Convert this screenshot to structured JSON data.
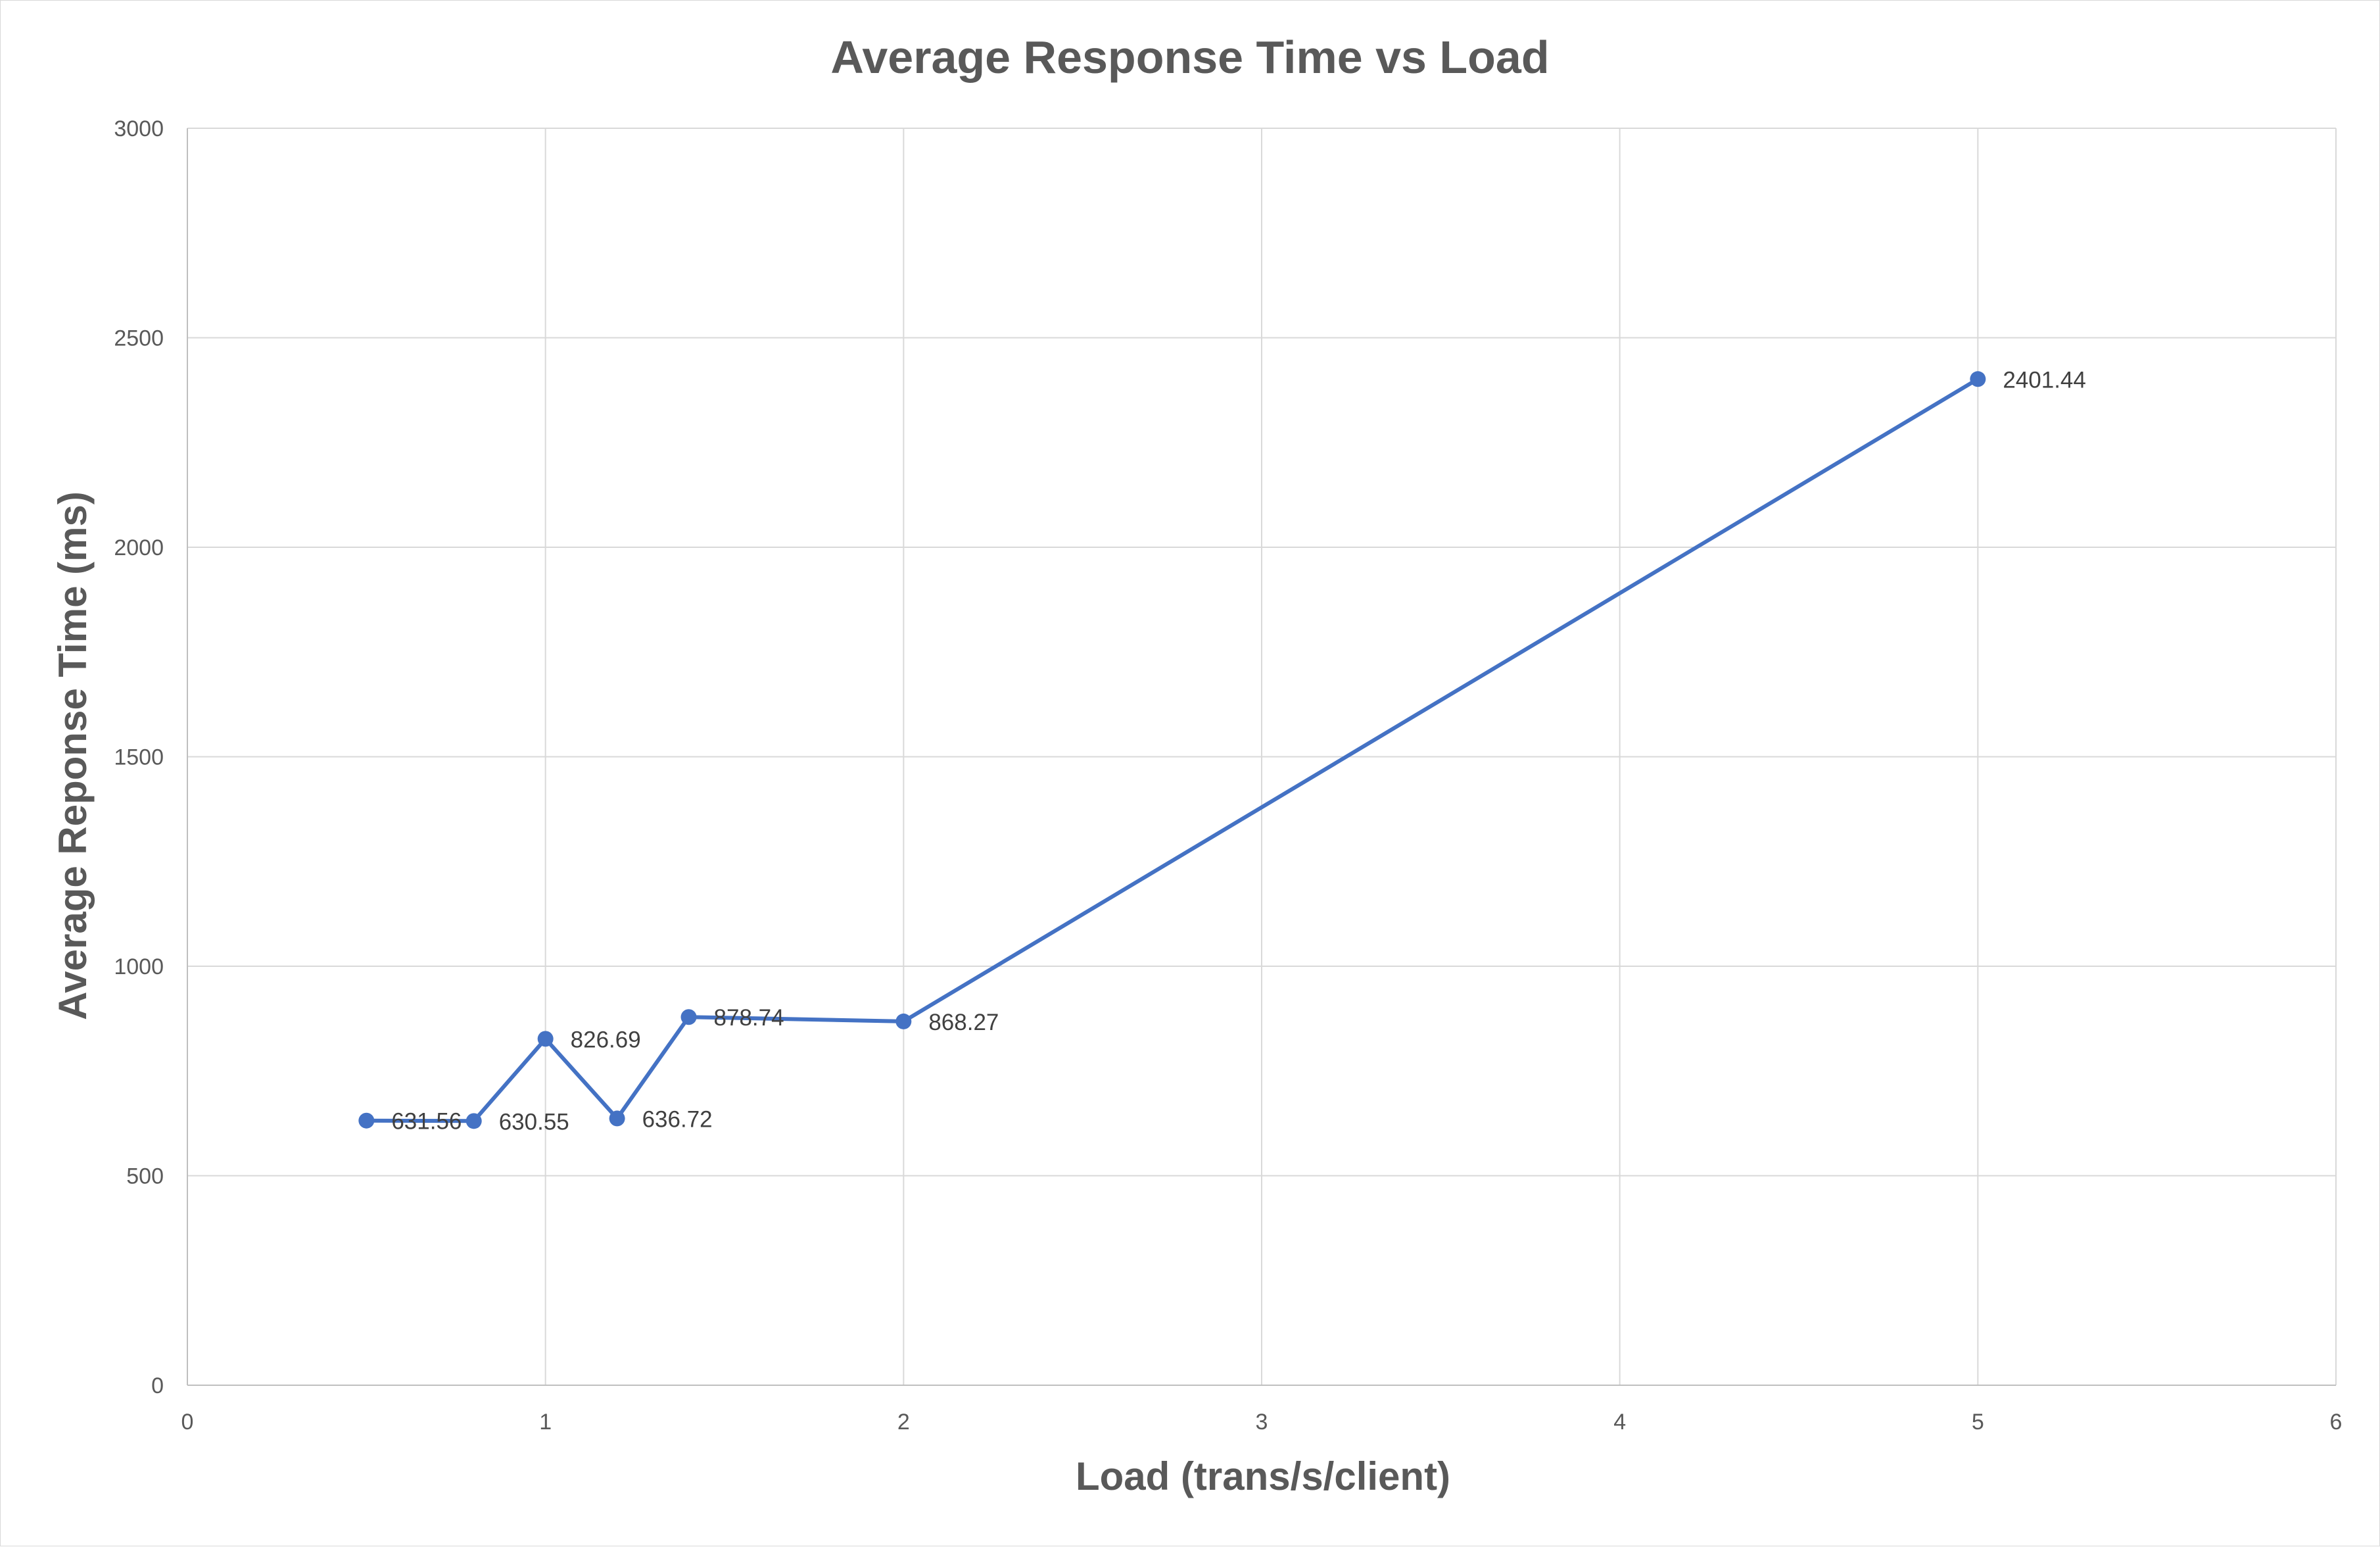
{
  "chart_data": {
    "type": "scatter",
    "title": "Average Response Time vs Load",
    "xlabel": "Load (trans/s/client)",
    "ylabel": "Average Reponse Time (ms)",
    "xlim": [
      0,
      6
    ],
    "ylim": [
      0,
      3000
    ],
    "x_ticks": [
      0,
      1,
      2,
      3,
      4,
      5,
      6
    ],
    "y_ticks": [
      0,
      500,
      1000,
      1500,
      2000,
      2500,
      3000
    ],
    "grid": true,
    "legend": "none",
    "color": "#4472C4",
    "series": [
      {
        "x": [
          0.5,
          0.8,
          1.0,
          1.2,
          1.4,
          2.0,
          5.0
        ],
        "y": [
          631.56,
          630.55,
          826.69,
          636.72,
          878.74,
          868.27,
          2401.44
        ],
        "labels": [
          "631.56",
          "630.55",
          "826.69",
          "636.72",
          "878.74",
          "868.27",
          "2401.44"
        ]
      }
    ]
  }
}
